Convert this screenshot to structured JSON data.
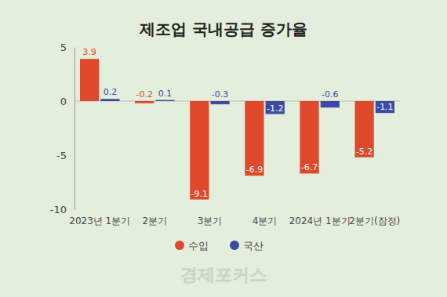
{
  "chart_data": {
    "type": "bar",
    "title": "제조업 국내공급 증가율",
    "categories": [
      "2023년 1분기",
      "2분기",
      "3분기",
      "4분기",
      "2024년 1분기",
      "2분기(잠정)"
    ],
    "series": [
      {
        "name": "수입",
        "color": "#e0482b",
        "values": [
          3.9,
          -0.2,
          -9.1,
          -6.9,
          -6.7,
          -5.2
        ]
      },
      {
        "name": "국산",
        "color": "#3c4aa6",
        "values": [
          0.2,
          0.1,
          -0.3,
          -1.2,
          -0.6,
          -1.1
        ]
      }
    ],
    "ylim": [
      -10,
      5
    ],
    "yticks": [
      -10,
      -5,
      0,
      5
    ],
    "grid": false,
    "data_labels": true,
    "legend": "bottom",
    "annotations": [
      "경제포커스"
    ]
  }
}
